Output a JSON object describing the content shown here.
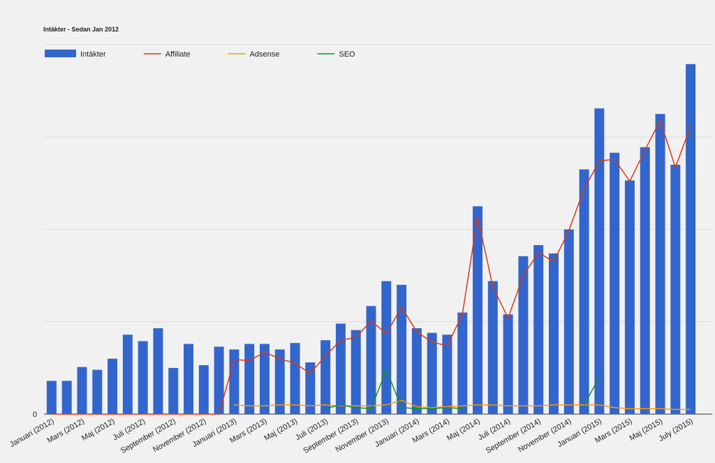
{
  "chart_data": {
    "type": "bar",
    "title": "Intäkter - Sedan Jan 2012",
    "categories": [
      "Januari (2012)",
      null,
      "Mars (2012)",
      null,
      "Maj (2012)",
      null,
      "Juli (2012)",
      null,
      "September (2012)",
      null,
      "November (2012)",
      null,
      "Januari (2013)",
      null,
      "Mars (2013)",
      null,
      "Maj (2013)",
      null,
      "Juli (2013)",
      null,
      "September (2013)",
      null,
      "November (2013)",
      null,
      "Januari (2014)",
      null,
      "Mars (2014)",
      null,
      "Maj (2014)",
      null,
      "Juli (2014)",
      null,
      "September (2014)",
      null,
      "November (2014)",
      null,
      "Januari (2015)",
      null,
      "Mars (2015)",
      null,
      "Maj (2015)",
      null,
      "July (2015)"
    ],
    "series": [
      {
        "name": "Intäkter",
        "type": "bar",
        "color": "#3366cc",
        "values": [
          0.36,
          0.36,
          0.51,
          0.48,
          0.6,
          0.86,
          0.79,
          0.93,
          0.5,
          0.76,
          0.53,
          0.73,
          0.7,
          0.76,
          0.76,
          0.7,
          0.77,
          0.56,
          0.8,
          0.98,
          0.91,
          1.17,
          1.44,
          1.4,
          0.93,
          0.88,
          0.86,
          1.1,
          2.25,
          1.44,
          1.08,
          1.71,
          1.83,
          1.74,
          2.0,
          2.65,
          3.31,
          2.83,
          2.53,
          2.89,
          3.25,
          2.7,
          3.79
        ]
      },
      {
        "name": "Affiliate",
        "type": "line",
        "color": "#dc3912",
        "values": [
          0,
          0,
          0,
          0,
          0,
          0,
          0,
          0,
          0,
          0,
          0,
          0,
          0.59,
          0.58,
          0.67,
          0.6,
          0.55,
          0.44,
          0.63,
          0.8,
          0.83,
          1.01,
          0.87,
          1.16,
          0.89,
          0.78,
          0.74,
          1.08,
          2.14,
          1.38,
          1.04,
          1.5,
          1.75,
          1.65,
          1.99,
          2.44,
          2.74,
          2.76,
          2.52,
          2.86,
          3.18,
          2.67,
          3.12
        ]
      },
      {
        "name": "Adsense",
        "type": "line",
        "color": "#ff9900",
        "values": [
          null,
          null,
          null,
          null,
          null,
          null,
          null,
          null,
          null,
          null,
          null,
          null,
          0.1,
          0.09,
          0.09,
          0.1,
          0.1,
          0.09,
          0.1,
          0.09,
          0.09,
          0.09,
          0.1,
          0.15,
          0.08,
          0.07,
          0.08,
          0.09,
          0.1,
          0.1,
          0.09,
          0.09,
          0.09,
          0.1,
          0.1,
          0.1,
          0.1,
          0.07,
          0.06,
          0.06,
          0.06,
          0.05,
          0.05
        ]
      },
      {
        "name": "SEO",
        "type": "line",
        "color": "#109618",
        "values": [
          null,
          null,
          null,
          null,
          null,
          null,
          null,
          null,
          null,
          null,
          null,
          null,
          null,
          null,
          null,
          null,
          null,
          null,
          0.06,
          0.1,
          0.07,
          0.06,
          0.48,
          0.07,
          0.06,
          0.06,
          0.07,
          0.06,
          null,
          null,
          null,
          null,
          null,
          null,
          null,
          0.1,
          0.4,
          null,
          null,
          null,
          null,
          null,
          null
        ]
      }
    ],
    "ylim": [
      0,
      4
    ],
    "yticks": [
      0
    ],
    "grid_lines": [
      1,
      2,
      3,
      4
    ],
    "grid": true,
    "legend": "top"
  }
}
